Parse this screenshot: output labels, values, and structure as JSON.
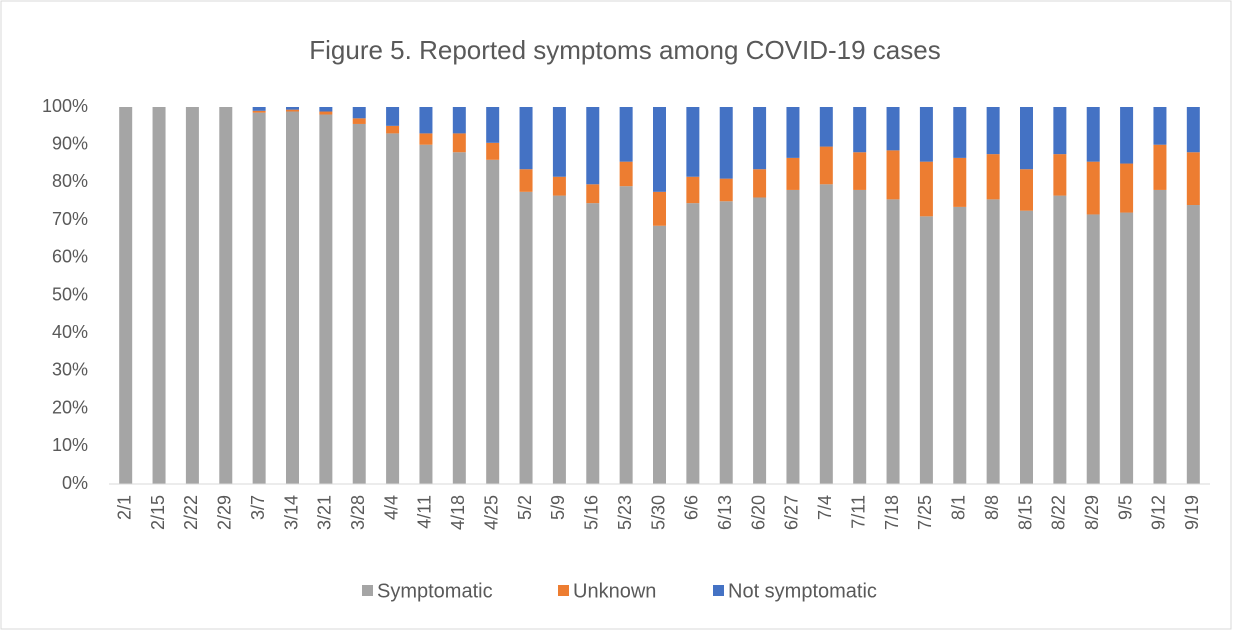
{
  "chart_data": {
    "type": "stacked_bar",
    "title": "Figure 5. Reported symptoms among COVID-19 cases",
    "categories": [
      "2/1",
      "2/15",
      "2/22",
      "2/29",
      "3/7",
      "3/14",
      "3/21",
      "3/28",
      "4/4",
      "4/11",
      "4/18",
      "4/25",
      "5/2",
      "5/9",
      "5/16",
      "5/23",
      "5/30",
      "6/6",
      "6/13",
      "6/20",
      "6/27",
      "7/4",
      "7/11",
      "7/18",
      "7/25",
      "8/1",
      "8/8",
      "8/15",
      "8/22",
      "8/29",
      "9/5",
      "9/12",
      "9/19"
    ],
    "series": [
      {
        "name": "Symptomatic",
        "color": "#a5a5a5",
        "values": [
          100,
          100,
          100,
          100,
          98.5,
          98.8,
          98,
          95.5,
          93,
          90,
          88,
          86,
          77.5,
          76.5,
          74.5,
          79,
          68.5,
          74.5,
          75,
          76,
          78,
          79.5,
          78,
          75.5,
          71,
          73.5,
          75.5,
          72.5,
          76.5,
          71.5,
          72,
          78,
          74
        ]
      },
      {
        "name": "Unknown",
        "color": "#ed7d31",
        "values": [
          0,
          0,
          0,
          0,
          0.5,
          0.5,
          0.8,
          1.5,
          2,
          3,
          5,
          4.5,
          6,
          5,
          5,
          6.5,
          9,
          7,
          6,
          7.5,
          8.5,
          10,
          10,
          13,
          14.5,
          13,
          12,
          11,
          11,
          14,
          13,
          12,
          14
        ]
      },
      {
        "name": "Not symptomatic",
        "color": "#4472c4",
        "values": [
          0,
          0,
          0,
          0,
          1,
          0.7,
          1.2,
          3,
          5,
          7,
          7,
          9.5,
          16.5,
          18.5,
          20.5,
          14.5,
          22.5,
          18.5,
          19,
          16.5,
          13.5,
          10.5,
          12,
          11.5,
          14.5,
          13.5,
          12.5,
          16.5,
          12.5,
          14.5,
          15,
          10,
          12
        ]
      }
    ],
    "ylim": [
      0,
      100
    ],
    "yticks": [
      {
        "value": 0,
        "label": "0%"
      },
      {
        "value": 10,
        "label": "10%"
      },
      {
        "value": 20,
        "label": "20%"
      },
      {
        "value": 30,
        "label": "30%"
      },
      {
        "value": 40,
        "label": "40%"
      },
      {
        "value": 50,
        "label": "50%"
      },
      {
        "value": 60,
        "label": "60%"
      },
      {
        "value": 70,
        "label": "70%"
      },
      {
        "value": 80,
        "label": "80%"
      },
      {
        "value": 90,
        "label": "90%"
      },
      {
        "value": 100,
        "label": "100%"
      }
    ],
    "legend": "bottom"
  }
}
